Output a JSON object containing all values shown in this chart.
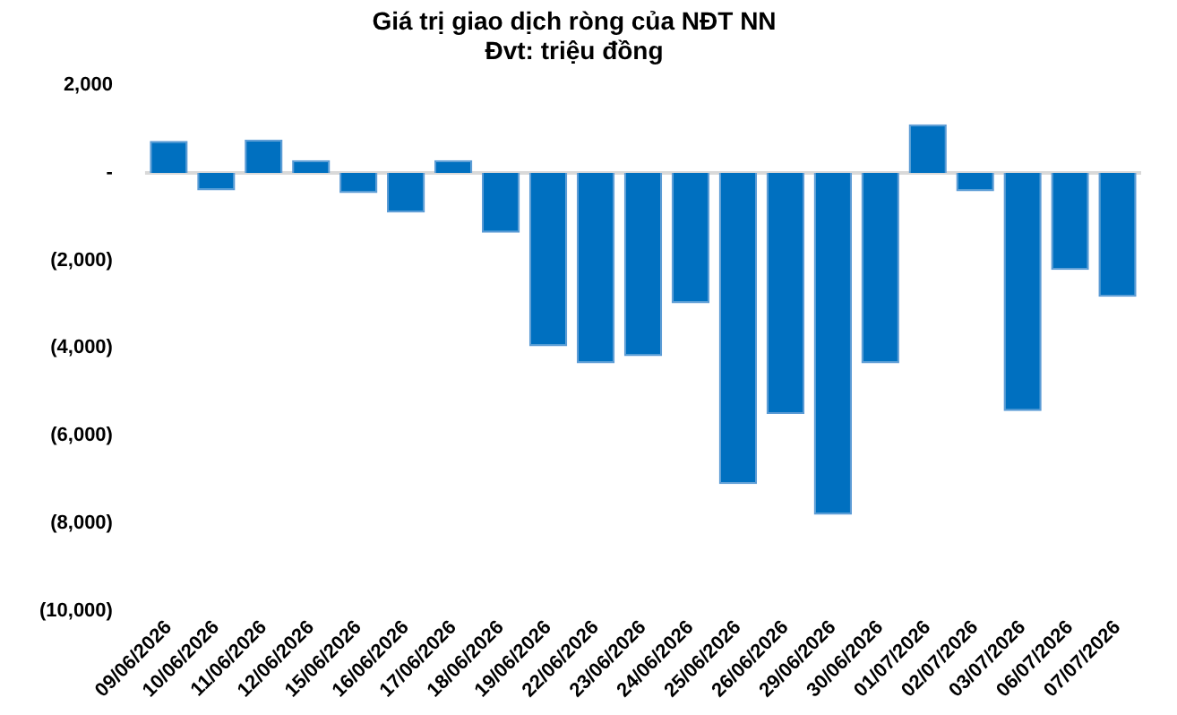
{
  "chart_data": {
    "type": "bar",
    "title": "Giá trị giao dịch ròng của NĐT NN",
    "subtitle": "Đvt: triệu đồng",
    "categories": [
      "09/06/2026",
      "10/06/2026",
      "11/06/2026",
      "12/06/2026",
      "15/06/2026",
      "16/06/2026",
      "17/06/2026",
      "18/06/2026",
      "19/06/2026",
      "22/06/2026",
      "23/06/2026",
      "24/06/2026",
      "25/06/2026",
      "26/06/2026",
      "29/06/2026",
      "30/06/2026",
      "01/07/2026",
      "02/07/2026",
      "03/07/2026",
      "06/07/2026",
      "07/07/2026"
    ],
    "values": [
      730,
      -400,
      760,
      290,
      -460,
      -910,
      290,
      -1370,
      -3960,
      -4350,
      -4190,
      -2980,
      -7110,
      -5510,
      -7810,
      -4350,
      1110,
      -420,
      -5440,
      -2220,
      -2830
    ],
    "color": "#0070c0",
    "ylim": [
      -10000,
      2000
    ],
    "yticks": [
      {
        "value": 2000,
        "label": "2,000"
      },
      {
        "value": 0,
        "label": "-"
      },
      {
        "value": -2000,
        "label": "(2,000)"
      },
      {
        "value": -4000,
        "label": "(4,000)"
      },
      {
        "value": -6000,
        "label": "(6,000)"
      },
      {
        "value": -8000,
        "label": "(8,000)"
      },
      {
        "value": -10000,
        "label": "(10,000)"
      }
    ],
    "ref_lines": [
      {
        "axis": "y",
        "value": 0,
        "color": "#d9d9d9"
      }
    ],
    "grid": false,
    "legend": false
  }
}
